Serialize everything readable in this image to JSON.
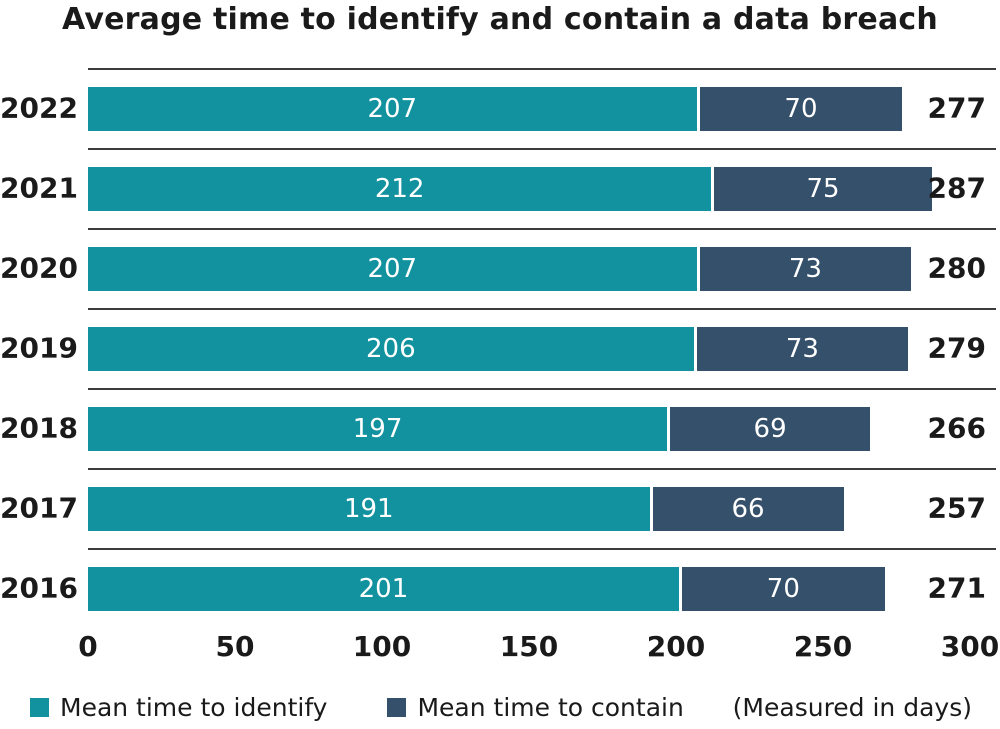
{
  "title": "Average time to identify and contain a data breach",
  "colors": {
    "identify": "#12929E",
    "contain": "#35506B",
    "separator_line": "#3C3C3C",
    "bar_value_text": "#FFFFFF",
    "text": "#1A1A1A"
  },
  "chart_data": {
    "type": "bar",
    "orientation": "horizontal",
    "stacked": true,
    "title": "Average time to identify and contain a data breach",
    "categories": [
      "2022",
      "2021",
      "2020",
      "2019",
      "2018",
      "2017",
      "2016"
    ],
    "series": [
      {
        "name": "Mean time to identify",
        "color": "#12929E",
        "values": [
          207,
          212,
          207,
          206,
          197,
          191,
          201
        ]
      },
      {
        "name": "Mean time to contain",
        "color": "#35506B",
        "values": [
          70,
          75,
          73,
          73,
          69,
          66,
          70
        ]
      }
    ],
    "totals": [
      277,
      287,
      280,
      279,
      266,
      257,
      271
    ],
    "xlabel": "",
    "ylabel": "",
    "xlim": [
      0,
      300
    ],
    "x_ticks": [
      0,
      50,
      100,
      150,
      200,
      250,
      300
    ],
    "grid": "row-separator-lines",
    "legend_position": "bottom",
    "note": "(Measured in days)",
    "unit": "days"
  },
  "legend": {
    "items": [
      {
        "label": "Mean time to identify",
        "color": "#12929E"
      },
      {
        "label": "Mean time to contain",
        "color": "#35506B"
      }
    ],
    "note": "(Measured in days)"
  }
}
